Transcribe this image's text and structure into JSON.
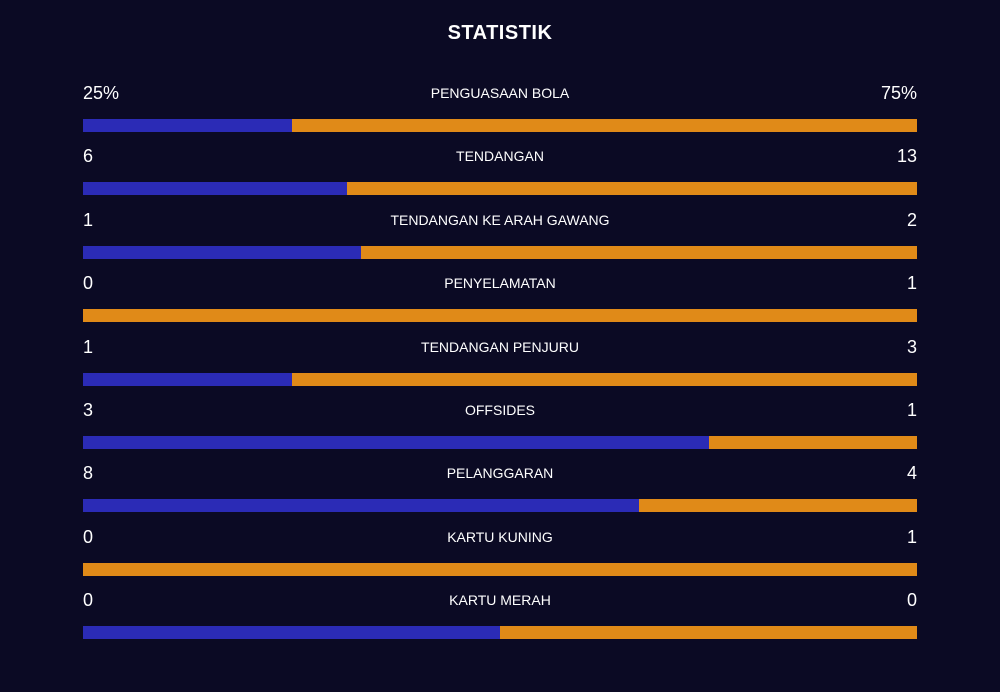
{
  "title": "STATISTIK",
  "colors": {
    "background": "#0b0a24",
    "home": "#2b2bb6",
    "away": "#e08a18"
  },
  "stats": [
    {
      "label": "PENGUASAAN BOLA",
      "home": "25%",
      "away": "75%",
      "home_share": 0.25
    },
    {
      "label": "TENDANGAN",
      "home": "6",
      "away": "13",
      "home_share": 0.316
    },
    {
      "label": "TENDANGAN KE ARAH GAWANG",
      "home": "1",
      "away": "2",
      "home_share": 0.333
    },
    {
      "label": "PENYELAMATAN",
      "home": "0",
      "away": "1",
      "home_share": 0
    },
    {
      "label": "TENDANGAN PENJURU",
      "home": "1",
      "away": "3",
      "home_share": 0.25
    },
    {
      "label": "OFFSIDES",
      "home": "3",
      "away": "1",
      "home_share": 0.75
    },
    {
      "label": "PELANGGARAN",
      "home": "8",
      "away": "4",
      "home_share": 0.667
    },
    {
      "label": "KARTU KUNING",
      "home": "0",
      "away": "1",
      "home_share": 0
    },
    {
      "label": "KARTU MERAH",
      "home": "0",
      "away": "0",
      "home_share": 0.5
    }
  ]
}
